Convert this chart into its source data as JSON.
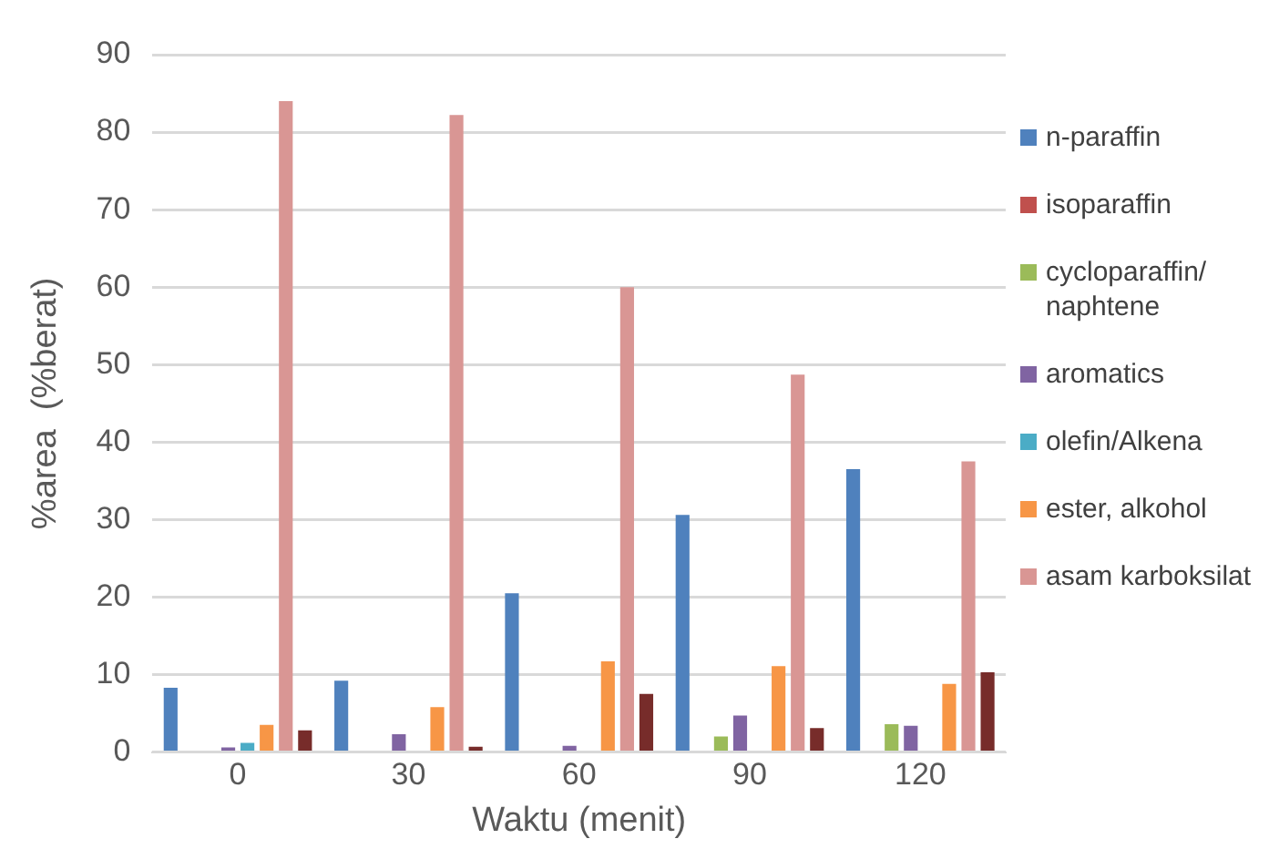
{
  "chart_data": {
    "type": "bar",
    "xlabel": "Waktu (menit)",
    "ylabel": "%area  (%berat)",
    "categories": [
      "0",
      "30",
      "60",
      "90",
      "120"
    ],
    "series": [
      {
        "name": "n-paraffin",
        "color": "#4f81bd",
        "values": [
          8.3,
          9.2,
          20.5,
          30.6,
          36.5
        ]
      },
      {
        "name": "isoparaffin",
        "color": "#c0504d",
        "values": [
          0,
          0,
          0,
          0,
          0
        ]
      },
      {
        "name": "cycloparaffin/ naphtene",
        "color": "#9bbb59",
        "values": [
          0,
          0,
          0,
          2,
          3.6
        ]
      },
      {
        "name": "aromatics",
        "color": "#8064a2",
        "values": [
          0.6,
          2.3,
          0.8,
          4.7,
          3.4
        ]
      },
      {
        "name": "olefin/Alkena",
        "color": "#4bacc6",
        "values": [
          1.2,
          0,
          0,
          0,
          0
        ]
      },
      {
        "name": "ester, alkohol",
        "color": "#f79646",
        "values": [
          3.5,
          5.8,
          11.7,
          11.1,
          8.8
        ]
      },
      {
        "name": "asam karboksilat",
        "color": "#d99694",
        "values": [
          84,
          82.2,
          60,
          48.7,
          37.5
        ]
      },
      {
        "color": "#772c2a",
        "values": [
          2.8,
          0.7,
          7.5,
          3.1,
          10.3
        ]
      }
    ],
    "ylim": [
      0,
      90
    ],
    "yticks": [
      0,
      10,
      20,
      30,
      40,
      50,
      60,
      70,
      80,
      90
    ],
    "grid": "y",
    "legend": "right"
  }
}
